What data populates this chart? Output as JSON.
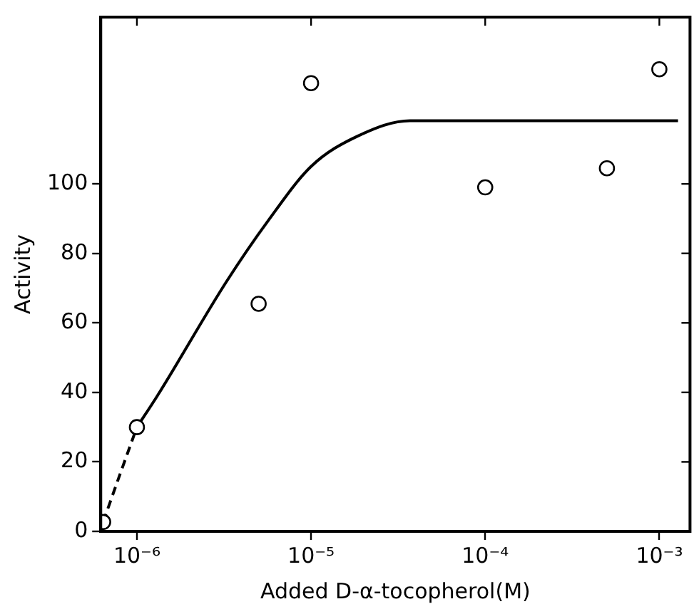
{
  "chart_data": {
    "type": "scatter",
    "xlabel": "Added D-α-tocopherol(M)",
    "ylabel": "Activity",
    "log": "x",
    "xlim": [
      6.2e-07,
      0.0015
    ],
    "xticks": [
      {
        "value": 1e-06,
        "label": "10⁻⁶"
      },
      {
        "value": 1e-05,
        "label": "10⁻⁵"
      },
      {
        "value": 0.0001,
        "label": "10⁻⁴"
      },
      {
        "value": 0.001,
        "label": "10⁻³"
      }
    ],
    "ylim": [
      0,
      148
    ],
    "yticks": [
      0,
      20,
      40,
      60,
      80,
      100
    ],
    "grid": false,
    "legend": false,
    "series": [
      {
        "color": "#000000",
        "marker": "circle",
        "x": [
          6.4e-07,
          1e-06,
          5e-06,
          1e-05,
          0.0001,
          0.0005,
          0.001
        ],
        "values": [
          2.7,
          30,
          65.5,
          129,
          99,
          104.5,
          133
        ]
      },
      {
        "type": "line",
        "color": "#000000",
        "marker": "none",
        "line_style": "dashed",
        "x": [
          6.4e-07,
          7.85e-07,
          1e-06
        ],
        "values": [
          2.7,
          15.3,
          30
        ]
      },
      {
        "type": "line",
        "color": "#000000",
        "marker": "none",
        "line_style": "solid",
        "x": [
          1e-06,
          1.31e-06,
          3.28e-06,
          5.67e-06,
          1e-05,
          1.86e-05,
          3.7e-05,
          0.00128
        ],
        "values": [
          30,
          39,
          72,
          89.4,
          105,
          113.8,
          118.2,
          118.2
        ]
      }
    ]
  }
}
